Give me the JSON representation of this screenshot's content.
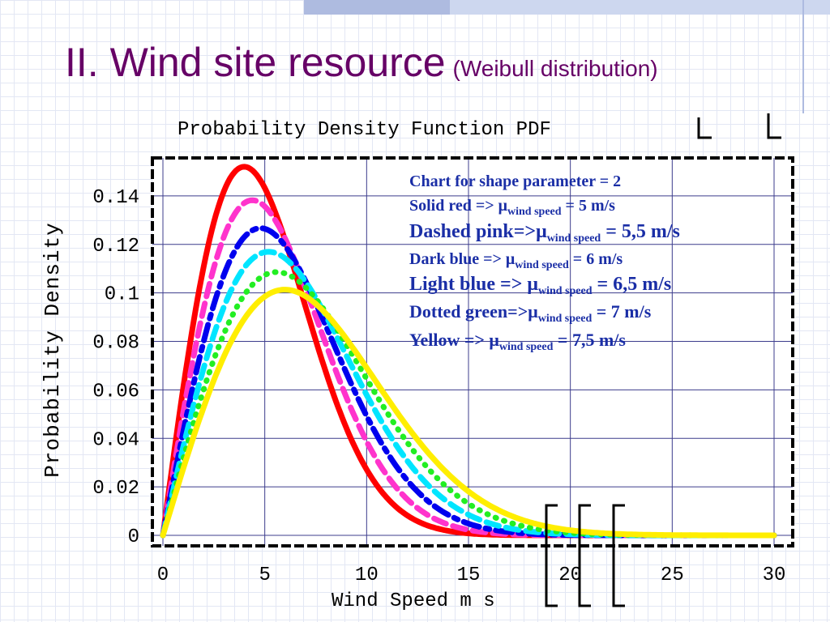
{
  "slide": {
    "title": "II. Wind site resource",
    "subtitle": "(Weibull distribution)"
  },
  "chart_data": {
    "type": "line",
    "title": "Probability   Density  Function    PDF",
    "xlabel": "Wind  Speed   m s",
    "ylabel": "Probability Density",
    "xlim": [
      0,
      30
    ],
    "ylim": [
      0,
      0.155
    ],
    "x_ticks": [
      "0",
      "5",
      "10",
      "15",
      "20",
      "25",
      "30"
    ],
    "y_ticks": [
      "0",
      "0.02",
      "0.04",
      "0.06",
      "0.08",
      "0.1",
      "0.12",
      "0.14"
    ],
    "x_tick_values": [
      0,
      5,
      10,
      15,
      20,
      25,
      30
    ],
    "y_tick_values": [
      0,
      0.02,
      0.04,
      0.06,
      0.08,
      0.1,
      0.12,
      0.14
    ],
    "grid": true,
    "shape_parameter": 2,
    "series": [
      {
        "mean": 5,
        "color": "#ff0000",
        "style": "solid"
      },
      {
        "mean": 5.5,
        "color": "#ff33cc",
        "style": "dashed"
      },
      {
        "mean": 6,
        "color": "#0000ee",
        "style": "dashdot"
      },
      {
        "mean": 6.5,
        "color": "#00e5ff",
        "style": "dashed"
      },
      {
        "mean": 7,
        "color": "#22ee22",
        "style": "dotted"
      },
      {
        "mean": 7.5,
        "color": "#ffee00",
        "style": "solid"
      }
    ],
    "legend": {
      "lines": [
        {
          "label": "Chart for shape parameter  = 2",
          "value": ""
        },
        {
          "label": "Solid red       => μ",
          "sub": "wind speed",
          "value": " = 5 m/s"
        },
        {
          "label": "Dashed pink=>μ",
          "sub": "wind speed",
          "value": " = 5,5 m/s"
        },
        {
          "label": "Dark blue      => μ",
          "sub": "wind speed",
          "value": " = 6 m/s"
        },
        {
          "label": "Light blue   => μ",
          "sub": "wind speed",
          "value": " = 6,5 m/s"
        },
        {
          "label": "Dotted green=>μ",
          "sub": "wind speed",
          "value": " = 7 m/s"
        },
        {
          "label": "Yellow          => μ",
          "sub": "wind speed",
          "value": " = 7,5 m/s"
        }
      ]
    }
  }
}
